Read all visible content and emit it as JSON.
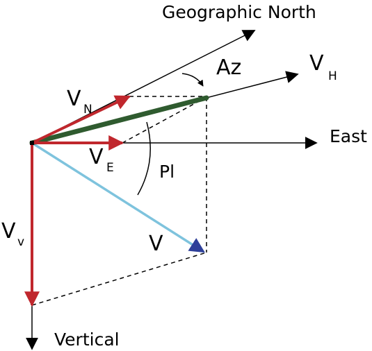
{
  "labels": {
    "north": "Geographic North",
    "east": "East",
    "vertical": "Vertical",
    "azimuth": "Az",
    "plunge": "Pl",
    "velocity": "V",
    "horizontal_main": "V",
    "horizontal_sub": "H",
    "north_main": "V",
    "north_sub": "N",
    "east_main": "V",
    "east_sub": "E",
    "vertical_main": "V",
    "vertical_sub": "v"
  },
  "colors": {
    "axis": "#000000",
    "component": "#c0272d",
    "horizontal": "#2f5b2f",
    "velocity": "#7ec3dd",
    "velocity_head": "#2e3f99",
    "construction": "#000000"
  }
}
